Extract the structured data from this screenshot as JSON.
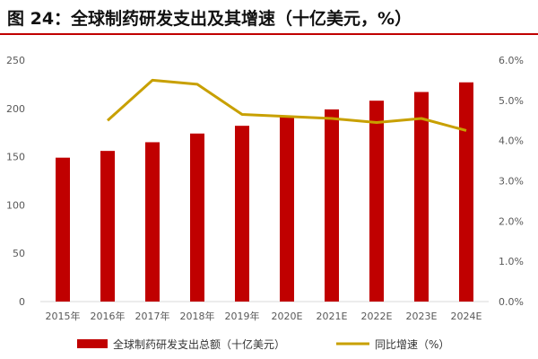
{
  "header": {
    "title": "图 24：全球制药研发支出及其增速（十亿美元，%）"
  },
  "colors": {
    "bar": "#c00000",
    "line": "#c8a000",
    "accent_rule": "#c00000"
  },
  "chart_data": {
    "type": "bar+line",
    "categories": [
      "2015年",
      "2016年",
      "2017年",
      "2018年",
      "2019年",
      "2020E",
      "2021E",
      "2022E",
      "2023E",
      "2024E"
    ],
    "series": [
      {
        "name": "全球制药研发支出总额（十亿美元）",
        "kind": "bar",
        "axis": "left",
        "values": [
          149,
          156,
          165,
          174,
          182,
          191,
          199,
          208,
          217,
          227
        ]
      },
      {
        "name": "同比增速（%）",
        "kind": "line",
        "axis": "right",
        "values": [
          null,
          4.5,
          5.5,
          5.4,
          4.65,
          4.6,
          4.55,
          4.45,
          4.55,
          4.25
        ]
      }
    ],
    "y_left": {
      "ticks": [
        "0",
        "50",
        "100",
        "150",
        "200",
        "250"
      ],
      "ylim": [
        0,
        250
      ]
    },
    "y_right": {
      "ticks": [
        "0.0%",
        "1.0%",
        "2.0%",
        "3.0%",
        "4.0%",
        "5.0%",
        "6.0%"
      ],
      "ylim": [
        0,
        6
      ]
    },
    "grid": false,
    "legend_position": "bottom"
  }
}
